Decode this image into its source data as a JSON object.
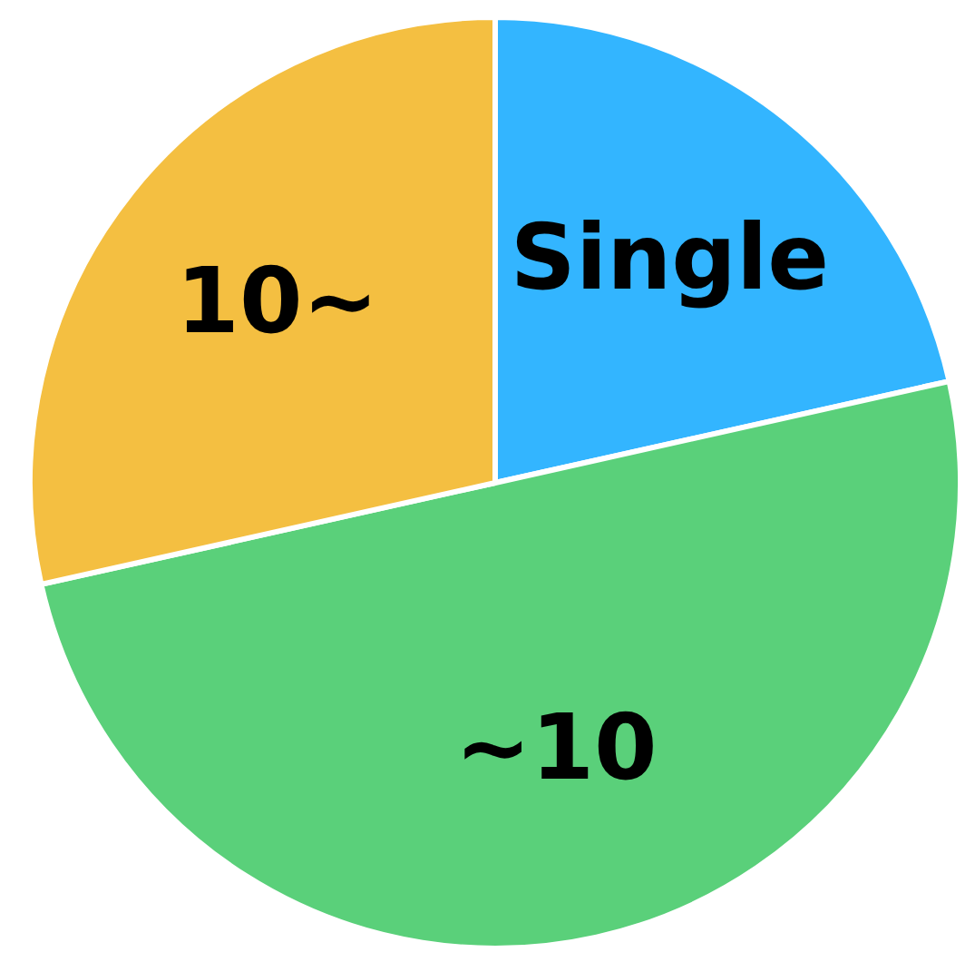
{
  "chart_data": {
    "type": "pie",
    "categories": [
      "Single",
      "~10",
      "10~"
    ],
    "values": [
      21.5,
      50,
      28.5
    ],
    "colors": [
      "#33b5ff",
      "#5ad07a",
      "#f4bf41"
    ],
    "legend": false
  }
}
